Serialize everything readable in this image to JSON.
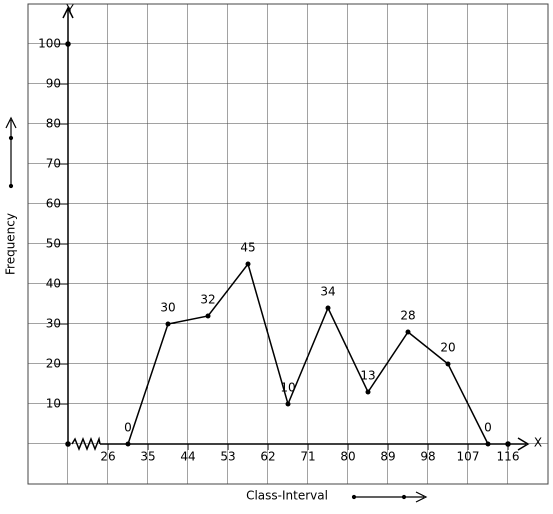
{
  "chart_data": {
    "type": "line",
    "x_label": "Class-Interval",
    "y_label": "Frequency",
    "x_axis_name": "X",
    "y_axis_name": "Y",
    "x": [
      30.5,
      39.5,
      48.5,
      57.5,
      66.5,
      75.5,
      84.5,
      93.5,
      102.5,
      111.5
    ],
    "series": [
      {
        "color": "#000000",
        "values": [
          0,
          30,
          32,
          45,
          10,
          34,
          13,
          28,
          20,
          0
        ]
      }
    ],
    "xlim": [
      17,
      120.5
    ],
    "xticks": [
      26,
      35,
      44,
      53,
      62,
      71,
      80,
      89,
      98,
      107,
      116
    ],
    "ylim": [
      0,
      110
    ],
    "yticks": [
      10,
      20,
      30,
      40,
      50,
      60,
      70,
      80,
      90,
      100
    ],
    "grid": true
  }
}
